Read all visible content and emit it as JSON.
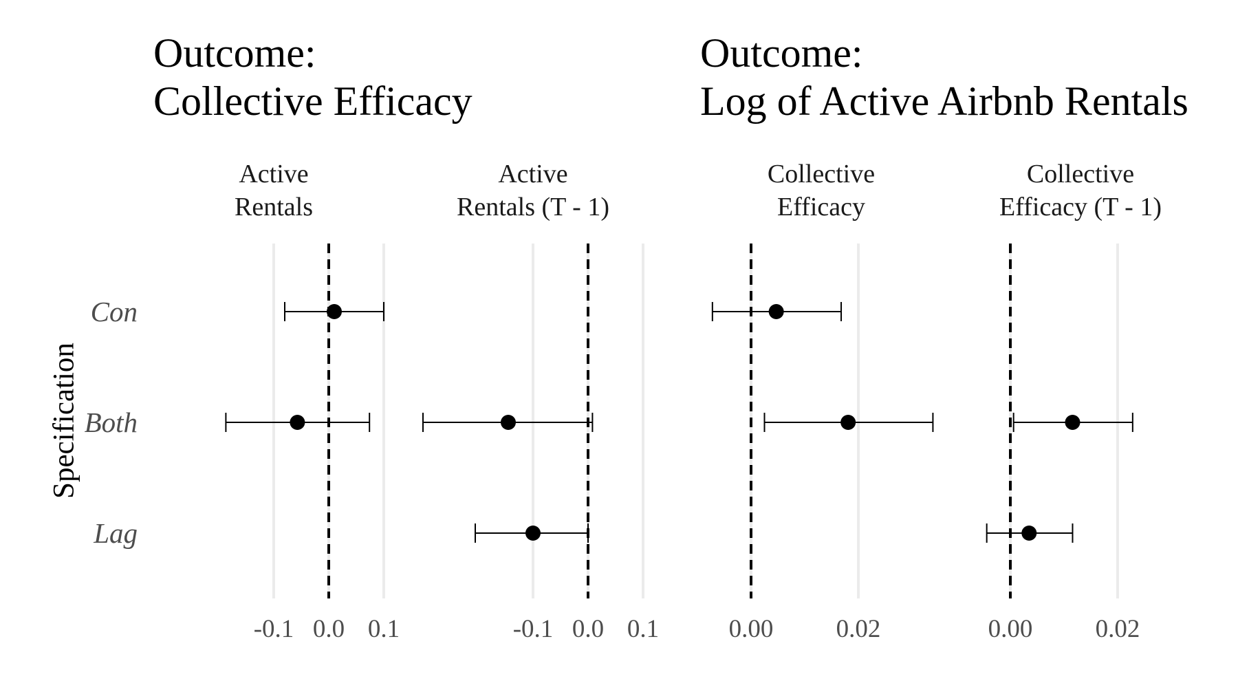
{
  "y_axis_label": "Specification",
  "groups": [
    {
      "title_line1": "Outcome:",
      "title_line2": "Collective Efficacy"
    },
    {
      "title_line1": "Outcome:",
      "title_line2": "Log of Active Airbnb Rentals"
    }
  ],
  "chart_data": {
    "type": "scatter",
    "subtype": "coefficient plot with error bars",
    "specifications": [
      "Con",
      "Both",
      "Lag"
    ],
    "reference_line": 0,
    "grid": "vertical major gridlines",
    "panels": [
      {
        "group": 0,
        "title_line1": "Active",
        "title_line2": "Rentals",
        "xlim": [
          -0.1,
          0.1
        ],
        "ticks": [
          -0.1,
          0.0,
          0.1
        ],
        "tick_labels": [
          "-0.1",
          "0.0",
          "0.1"
        ],
        "points": [
          {
            "spec": "Con",
            "estimate": 0.01,
            "low": -0.08,
            "high": 0.1
          },
          {
            "spec": "Both",
            "estimate": -0.057,
            "low": -0.187,
            "high": 0.074
          }
        ]
      },
      {
        "group": 0,
        "title_line1": "Active",
        "title_line2": "Rentals (T - 1)",
        "xlim": [
          -0.1,
          0.1
        ],
        "ticks": [
          -0.1,
          0.0,
          0.1
        ],
        "tick_labels": [
          "-0.1",
          "0.0",
          "0.1"
        ],
        "points": [
          {
            "spec": "Both",
            "estimate": -0.145,
            "low": -0.3,
            "high": 0.008
          },
          {
            "spec": "Lag",
            "estimate": -0.1,
            "low": -0.205,
            "high": 0.0
          }
        ]
      },
      {
        "group": 1,
        "title_line1": "Collective",
        "title_line2": "Efficacy",
        "xlim": [
          0.0,
          0.02
        ],
        "ticks": [
          0.0,
          0.02
        ],
        "tick_labels": [
          "0.00",
          "0.02"
        ],
        "points": [
          {
            "spec": "Con",
            "estimate": 0.0047,
            "low": -0.0072,
            "high": 0.0168
          },
          {
            "spec": "Both",
            "estimate": 0.0181,
            "low": 0.0025,
            "high": 0.0339
          }
        ]
      },
      {
        "group": 1,
        "title_line1": "Collective",
        "title_line2": "Efficacy (T - 1)",
        "xlim": [
          0.0,
          0.02
        ],
        "ticks": [
          0.0,
          0.02
        ],
        "tick_labels": [
          "0.00",
          "0.02"
        ],
        "points": [
          {
            "spec": "Both",
            "estimate": 0.0116,
            "low": 0.0006,
            "high": 0.0228
          },
          {
            "spec": "Lag",
            "estimate": 0.0035,
            "low": -0.0044,
            "high": 0.0116
          }
        ]
      }
    ]
  }
}
